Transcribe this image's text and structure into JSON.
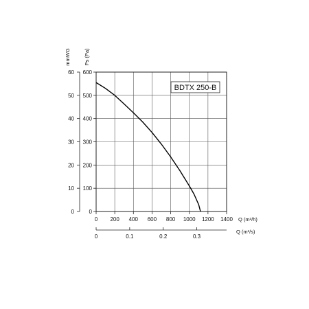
{
  "chart_data": {
    "type": "line",
    "model_label": "BDTX 250-B",
    "x_primary": {
      "label": "Q (m³/h)",
      "ticks": [
        0,
        200,
        400,
        600,
        800,
        1000,
        1200,
        1400
      ],
      "range": [
        0,
        1400
      ]
    },
    "x_secondary": {
      "label": "Q (m³/s)",
      "ticks": [
        0,
        0.1,
        0.2,
        0.3
      ],
      "range": [
        0,
        0.3889
      ]
    },
    "y_primary": {
      "label": "Ps (Pa)",
      "ticks": [
        0,
        100,
        200,
        300,
        400,
        500,
        600
      ],
      "range": [
        0,
        600
      ]
    },
    "y_secondary": {
      "label": "mmWG",
      "ticks": [
        0,
        10,
        20,
        30,
        40,
        50,
        60
      ],
      "range": [
        0,
        60
      ]
    },
    "grid": true,
    "series": [
      {
        "x": [
          0,
          100,
          200,
          300,
          400,
          500,
          600,
          700,
          800,
          900,
          1000,
          1050,
          1100,
          1120
        ],
        "y": [
          555,
          530,
          500,
          463,
          425,
          385,
          340,
          290,
          235,
          175,
          110,
          75,
          30,
          0
        ]
      }
    ]
  }
}
